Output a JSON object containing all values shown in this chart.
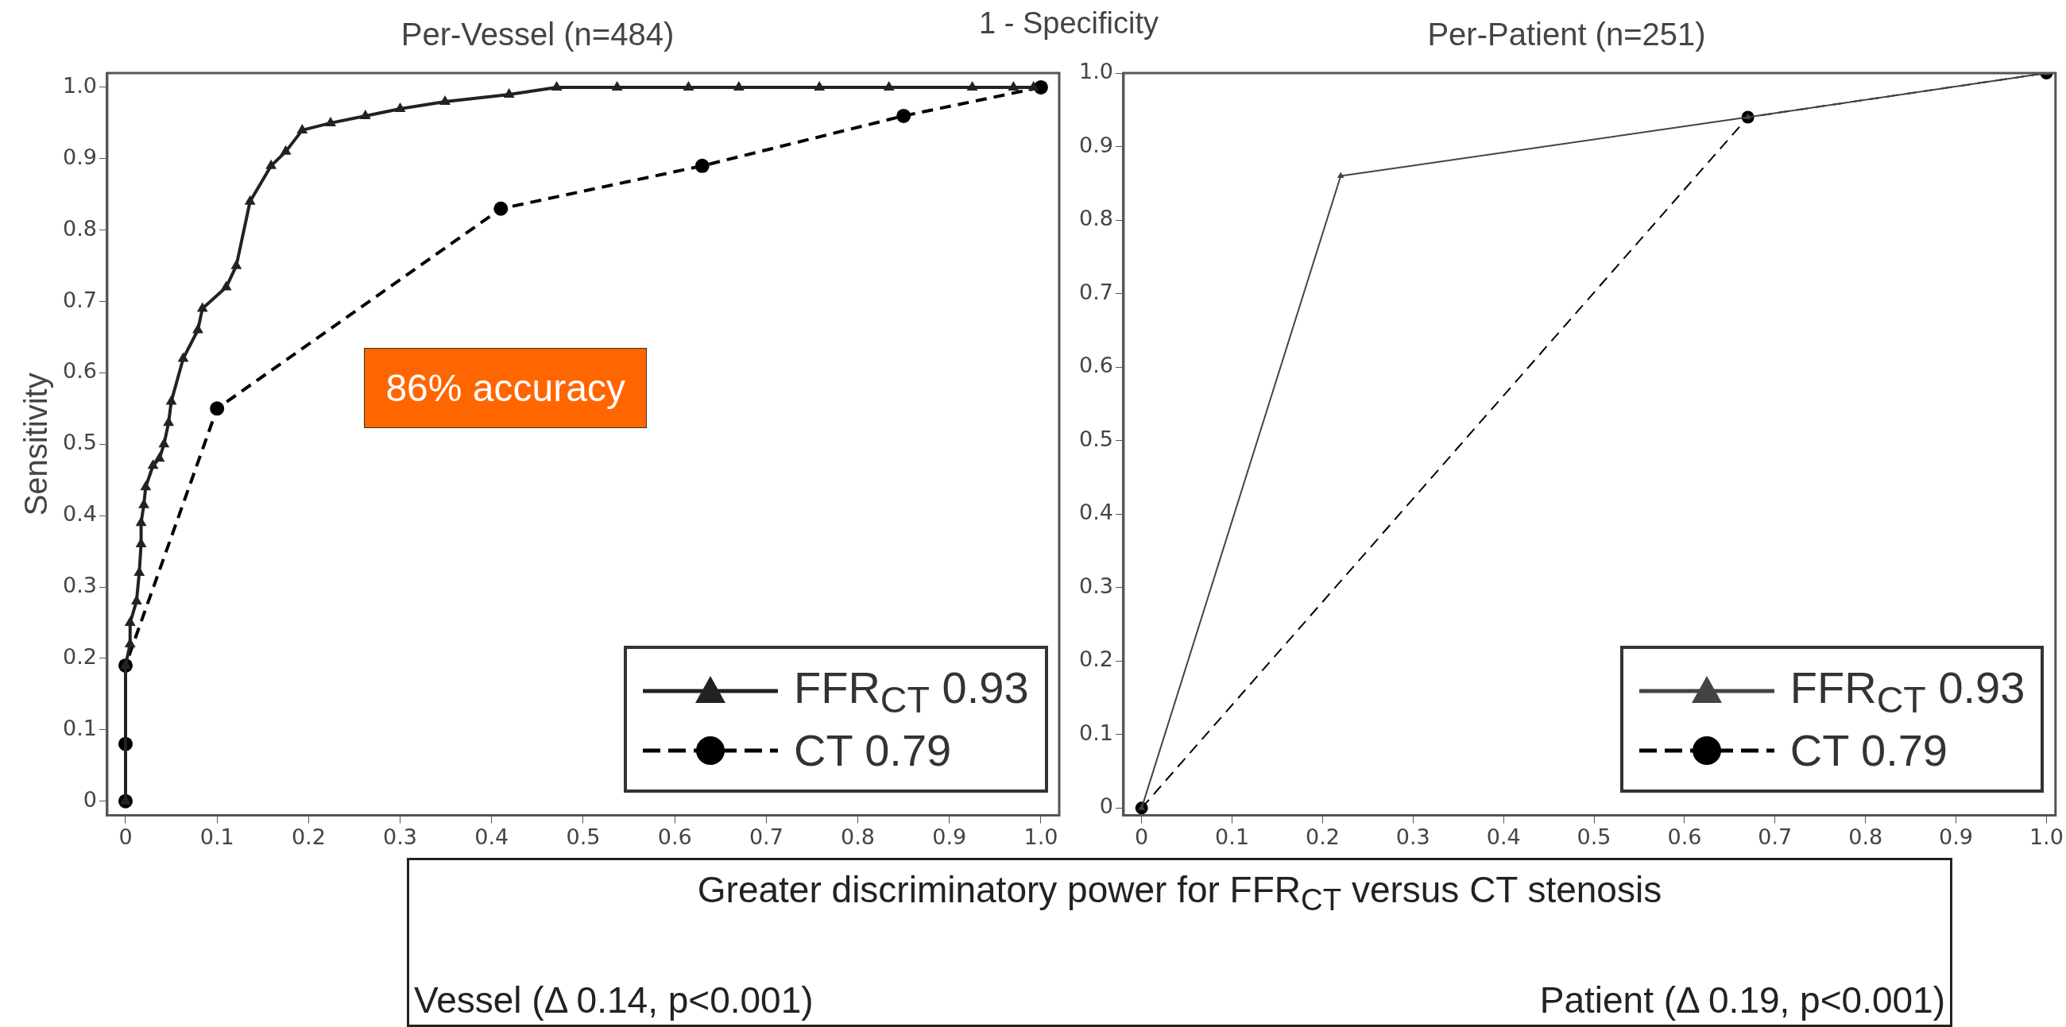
{
  "chart_data": [
    {
      "type": "line",
      "title": "Per-Vessel (n=484)",
      "xlabel": "1 - Specificity",
      "ylabel": "Sensitivity",
      "xlim": [
        -0.02,
        1.02
      ],
      "ylim": [
        -0.02,
        1.02
      ],
      "xticks": [
        0,
        0.1,
        0.2,
        0.3,
        0.4,
        0.5,
        0.6,
        0.7,
        0.8,
        0.9,
        {
          "value": 1,
          "label": "1.0"
        }
      ],
      "yticks": [
        0,
        0.1,
        0.2,
        0.3,
        0.4,
        0.5,
        0.6,
        0.7,
        0.8,
        0.9,
        {
          "value": 1,
          "label": "1.0"
        }
      ],
      "legend": "bottom right",
      "annotations": [
        "86% accuracy"
      ],
      "series": [
        {
          "name": "FFR$_{CT}$ 0.93",
          "color": "#222222",
          "marker": "triangle",
          "line_style": "solid",
          "x": [
            0,
            0,
            0.005,
            0.005,
            0.012,
            0.015,
            0.017,
            0.017,
            0.02,
            0.022,
            0.03,
            0.037,
            0.042,
            0.047,
            0.05,
            0.063,
            0.079,
            0.084,
            0.11,
            0.121,
            0.136,
            0.159,
            0.175,
            0.193,
            0.224,
            0.262,
            0.3,
            0.349,
            0.419,
            0.471,
            0.537,
            0.615,
            0.67,
            0.758,
            0.834,
            0.925,
            0.97,
            0.992
          ],
          "values": [
            0,
            0.19,
            0.22,
            0.25,
            0.28,
            0.32,
            0.36,
            0.39,
            0.415,
            0.44,
            0.47,
            0.48,
            0.5,
            0.53,
            0.56,
            0.62,
            0.66,
            0.69,
            0.72,
            0.75,
            0.84,
            0.89,
            0.91,
            0.94,
            0.95,
            0.96,
            0.97,
            0.98,
            0.99,
            1,
            1,
            1,
            1,
            1,
            1,
            1,
            1,
            1
          ]
        },
        {
          "name": "CT 0.79",
          "color": "#000000",
          "marker": "circle",
          "line_style": "dashed",
          "x": [
            0,
            0,
            0,
            0.1,
            0.41,
            0.63,
            0.85,
            1
          ],
          "values": [
            0,
            0.08,
            0.19,
            0.55,
            0.83,
            0.89,
            0.96,
            1
          ]
        }
      ]
    },
    {
      "type": "line",
      "title": "Per-Patient (n=251)",
      "xlim": [
        -0.02,
        1.01
      ],
      "ylim": [
        -0.01,
        1
      ],
      "xticks": [
        0,
        0.1,
        0.2,
        0.3,
        0.4,
        0.5,
        0.6,
        0.7,
        0.8,
        0.9,
        {
          "value": 1,
          "label": "1.0"
        }
      ],
      "yticks": [
        0,
        0.1,
        0.2,
        0.3,
        0.4,
        0.5,
        0.6,
        0.7,
        0.8,
        0.9,
        {
          "value": 1,
          "label": "1.0"
        }
      ],
      "legend": "bottom right",
      "series": [
        {
          "name": "FFR$_{CT}$ 0.93",
          "color": "#444444",
          "marker": "triangle",
          "line_style": "solid",
          "x": [
            0,
            0.22,
            0.67,
            1
          ],
          "values": [
            0,
            0.86,
            0.94,
            1
          ]
        },
        {
          "name": "CT 0.79",
          "color": "#000000",
          "marker": "circle",
          "line_style": "dashed",
          "x": [
            0,
            0.67,
            1
          ],
          "values": [
            0,
            0.94,
            1
          ]
        }
      ]
    },
    {
      "type": "other",
      "title": "Greater discriminatory power for FFR$_{CT}$ versus CT stenosis",
      "annotations": [
        "Vessel (Δ 0.14, p<0.001)",
        "Patient (Δ 0.19, p<0.001)"
      ]
    }
  ]
}
